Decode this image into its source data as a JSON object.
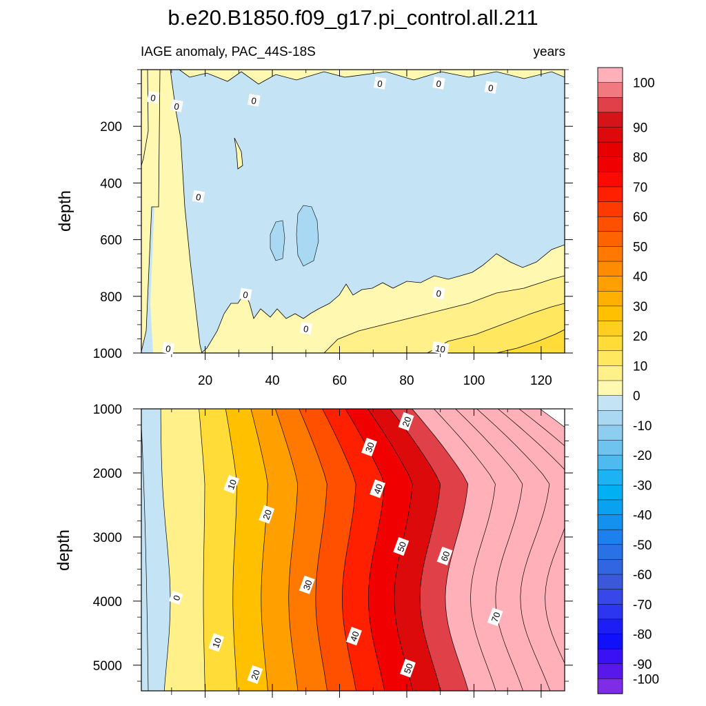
{
  "chart_data": {
    "type": "contour",
    "title": "b.e20.B1850.f09_g17.pi_control.all.211",
    "subtitle_left": "IAGE anomaly, PAC_44S-18S",
    "subtitle_right": "years",
    "ylabel": "depth",
    "x": {
      "range": [
        1,
        127
      ],
      "ticks": [
        20,
        40,
        60,
        80,
        100,
        120
      ],
      "tick_labels": [
        "20",
        "40",
        "60",
        "80",
        "100",
        "120"
      ]
    },
    "upper_panel": {
      "ylim": [
        0,
        1000
      ],
      "y_reversed": true,
      "yticks": [
        200,
        400,
        600,
        800,
        1000
      ],
      "ytick_labels": [
        "200",
        "400",
        "600",
        "800",
        "1000"
      ],
      "contour_labels": [
        {
          "text": "0",
          "x": 4.5,
          "y": 100
        },
        {
          "text": "0",
          "x": 11.5,
          "y": 130
        },
        {
          "text": "0",
          "x": 34.5,
          "y": 110
        },
        {
          "text": "0",
          "x": 72,
          "y": 50
        },
        {
          "text": "0",
          "x": 89.5,
          "y": 50
        },
        {
          "text": "0",
          "x": 105,
          "y": 65
        },
        {
          "text": "0",
          "x": 18,
          "y": 450
        },
        {
          "text": "0",
          "x": 32,
          "y": 795
        },
        {
          "text": "0",
          "x": 89.5,
          "y": 790
        },
        {
          "text": "0",
          "x": 50,
          "y": 915
        },
        {
          "text": "0",
          "x": 9,
          "y": 985
        },
        {
          "text": "10",
          "x": 90,
          "y": 985
        }
      ]
    },
    "lower_panel": {
      "ylim": [
        1000,
        5400
      ],
      "y_reversed": true,
      "yticks": [
        1000,
        2000,
        3000,
        4000,
        5000
      ],
      "ytick_labels": [
        "1000",
        "2000",
        "3000",
        "4000",
        "5000"
      ],
      "contour_labels": [
        {
          "text": "20",
          "x": 80,
          "y": 1200
        },
        {
          "text": "30",
          "x": 69,
          "y": 1600
        },
        {
          "text": "10",
          "x": 28,
          "y": 2180
        },
        {
          "text": "40",
          "x": 71.5,
          "y": 2250
        },
        {
          "text": "20",
          "x": 38.5,
          "y": 2650
        },
        {
          "text": "50",
          "x": 78.5,
          "y": 3150
        },
        {
          "text": "60",
          "x": 91.5,
          "y": 3300
        },
        {
          "text": "30",
          "x": 50.5,
          "y": 3750
        },
        {
          "text": "0",
          "x": 11.5,
          "y": 3950
        },
        {
          "text": "70",
          "x": 106.5,
          "y": 4250
        },
        {
          "text": "40",
          "x": 64.5,
          "y": 4550
        },
        {
          "text": "10",
          "x": 23.5,
          "y": 4650
        },
        {
          "text": "50",
          "x": 80.5,
          "y": 5050
        },
        {
          "text": "20",
          "x": 35,
          "y": 5150
        }
      ]
    },
    "colorbar": {
      "levels": [
        -100,
        -90,
        -80,
        -70,
        -60,
        -50,
        -40,
        -30,
        -20,
        -10,
        0,
        10,
        20,
        30,
        40,
        50,
        60,
        70,
        80,
        90,
        100
      ],
      "labels": [
        "100",
        "90",
        "80",
        "70",
        "60",
        "50",
        "40",
        "30",
        "20",
        "10",
        "0",
        "-10",
        "-20",
        "-30",
        "-40",
        "-50",
        "-60",
        "-70",
        "-80",
        "-90",
        "-100"
      ],
      "colors_top_to_bottom": [
        "#ffb0b8",
        "#f07a80",
        "#e04048",
        "#d41418",
        "#dc0a0a",
        "#e60000",
        "#f00000",
        "#fa0a00",
        "#ff2000",
        "#ff3a00",
        "#ff5000",
        "#ff6400",
        "#ff7800",
        "#ff8c00",
        "#ffa000",
        "#ffb000",
        "#ffc000",
        "#ffcf20",
        "#ffdc38",
        "#ffe860",
        "#fff08a",
        "#fff8b0",
        "#c4e4f6",
        "#a9d8f2",
        "#8ecdf0",
        "#6ec3ef",
        "#4dbaf0",
        "#1cb2f4",
        "#00b0f2",
        "#0aa2f0",
        "#1490ee",
        "#1e80ec",
        "#2872e6",
        "#3265e0",
        "#3c58da",
        "#3848e8",
        "#2c36f0",
        "#1c1ef5",
        "#1010fa",
        "#3a10f4",
        "#5818ec",
        "#7e2ce8"
      ]
    }
  }
}
